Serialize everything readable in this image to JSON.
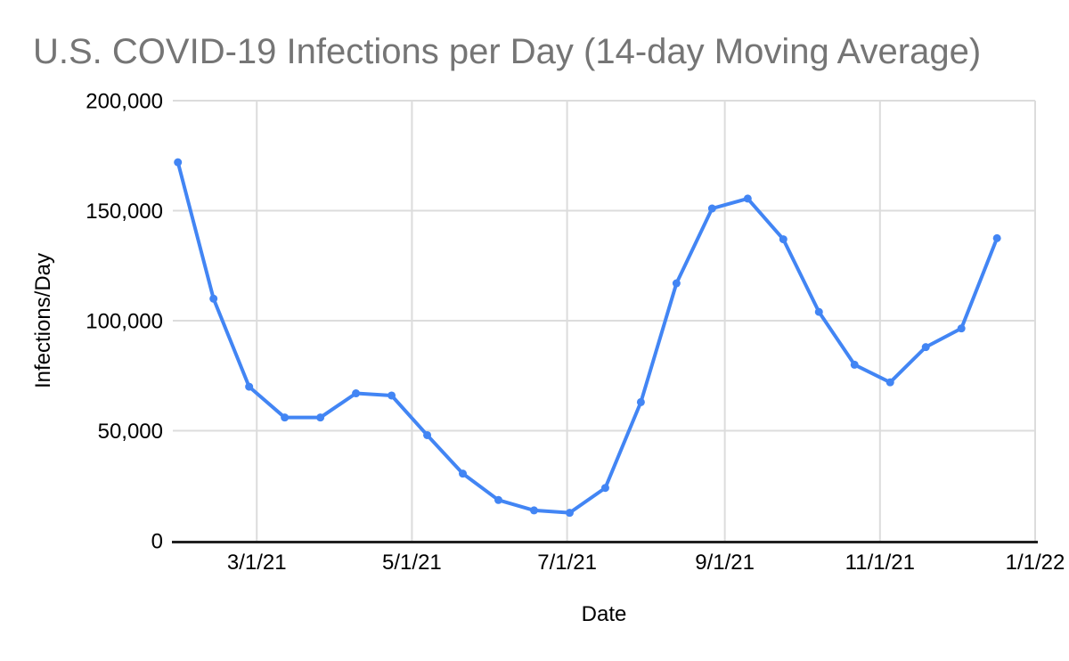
{
  "chart_data": {
    "type": "line",
    "title": "U.S. COVID-19 Infections per Day (14-day Moving Average)",
    "xlabel": "Date",
    "ylabel": "Infections/Day",
    "series_name": "Infections/Day",
    "x": [
      "1/29/21",
      "2/12/21",
      "2/26/21",
      "3/12/21",
      "3/26/21",
      "4/9/21",
      "4/23/21",
      "5/7/21",
      "5/21/21",
      "6/4/21",
      "6/18/21",
      "7/2/21",
      "7/16/21",
      "7/30/21",
      "8/13/21",
      "8/27/21",
      "9/10/21",
      "9/24/21",
      "10/8/21",
      "10/22/21",
      "11/5/21",
      "11/19/21",
      "12/3/21",
      "12/17/21"
    ],
    "values": [
      172000,
      110000,
      70000,
      56000,
      56000,
      67000,
      66000,
      48000,
      30500,
      18500,
      13800,
      12700,
      24000,
      63000,
      117000,
      151000,
      155500,
      137000,
      104000,
      80000,
      72000,
      88000,
      96500,
      137500
    ],
    "x_tick_labels": [
      "3/1/21",
      "5/1/21",
      "7/1/21",
      "9/1/21",
      "11/1/21",
      "1/1/22"
    ],
    "x_range": [
      "1/27/21",
      "1/1/22"
    ],
    "y_ticks": [
      0,
      50000,
      100000,
      150000,
      200000
    ],
    "ylim": [
      0,
      200000
    ],
    "grid": true,
    "legend": "none",
    "marker": "circle",
    "colors": {
      "series": "#4285f4",
      "title": "#757575",
      "labels": "#000000",
      "grid": "#dcdcdc",
      "axis": "#212121",
      "background": "#ffffff"
    }
  }
}
